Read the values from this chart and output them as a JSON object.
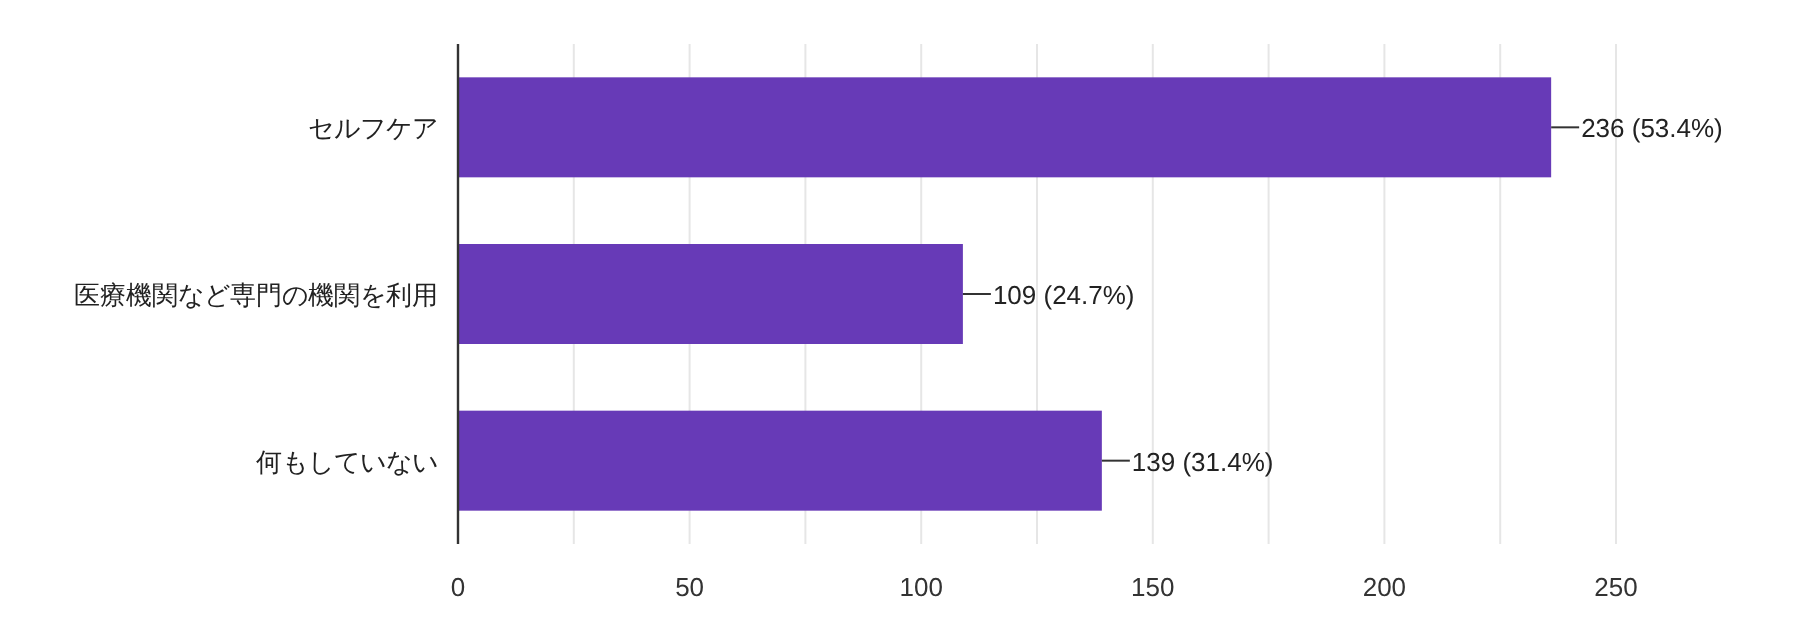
{
  "chart_data": {
    "type": "bar",
    "orientation": "horizontal",
    "categories": [
      "セルフケア",
      "医療機関など専門の機関を利用",
      "何もしていない"
    ],
    "values": [
      236,
      109,
      139
    ],
    "value_labels": [
      "236 (53.4%)",
      "109 (24.7%)",
      "139 (31.4%)"
    ],
    "color": "#673ab7",
    "xlim": [
      0,
      250
    ],
    "xticks": [
      0,
      {
        "value": 25,
        "label": null
      },
      50,
      {
        "value": 75,
        "label": null
      },
      100,
      {
        "value": 125,
        "label": null
      },
      150,
      {
        "value": 175,
        "label": null
      },
      200,
      {
        "value": 225,
        "label": null
      },
      250
    ],
    "grid": "x"
  }
}
